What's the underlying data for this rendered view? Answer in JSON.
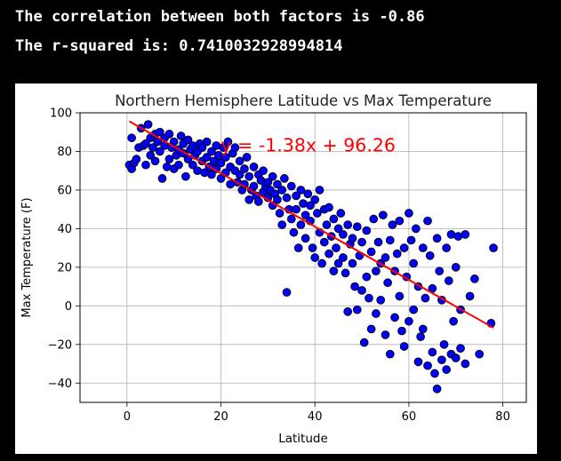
{
  "output": {
    "line1": "The correlation between both factors is -0.86",
    "line2": "The r-squared is: 0.7410032928994814"
  },
  "chart_data": {
    "type": "scatter",
    "title": "Northern Hemisphere Latitude vs Max Temperature",
    "xlabel": "Latitude",
    "ylabel": "Max Temperature (F)",
    "xlim": [
      -10,
      85
    ],
    "ylim": [
      -50,
      100
    ],
    "xticks": [
      0,
      20,
      40,
      60,
      80
    ],
    "yticks": [
      -40,
      -20,
      0,
      20,
      40,
      60,
      80,
      100
    ],
    "grid": true,
    "colors": {
      "points": "#0000ff",
      "point_edge": "#000000",
      "regression": "#ff0000",
      "annotation": "#ff0000"
    },
    "regression": {
      "slope": -1.38,
      "intercept": 96.26,
      "x_range": [
        0.5,
        78
      ]
    },
    "annotation": {
      "text": "y = -1.38x + 96.26",
      "x": 20,
      "y": 80
    },
    "points": [
      [
        0.5,
        73
      ],
      [
        1,
        71
      ],
      [
        1,
        87
      ],
      [
        1.5,
        74
      ],
      [
        2,
        76
      ],
      [
        2.5,
        82
      ],
      [
        3,
        92
      ],
      [
        3.5,
        83
      ],
      [
        4,
        84
      ],
      [
        4,
        73
      ],
      [
        4.5,
        94
      ],
      [
        5,
        87
      ],
      [
        5,
        78
      ],
      [
        5.5,
        82
      ],
      [
        6,
        89
      ],
      [
        6,
        75
      ],
      [
        6.5,
        85
      ],
      [
        7,
        90
      ],
      [
        7,
        80
      ],
      [
        7.5,
        66
      ],
      [
        8,
        87
      ],
      [
        8,
        83
      ],
      [
        8.5,
        72
      ],
      [
        9,
        89
      ],
      [
        9,
        76
      ],
      [
        9.5,
        82
      ],
      [
        10,
        71
      ],
      [
        10,
        85
      ],
      [
        10.5,
        78
      ],
      [
        11,
        81
      ],
      [
        11,
        73
      ],
      [
        11.5,
        88
      ],
      [
        12,
        79
      ],
      [
        12,
        84
      ],
      [
        12.5,
        67
      ],
      [
        13,
        86
      ],
      [
        13,
        76
      ],
      [
        13.5,
        81
      ],
      [
        14,
        73
      ],
      [
        14,
        83
      ],
      [
        14.5,
        78
      ],
      [
        15,
        80
      ],
      [
        15,
        70
      ],
      [
        15.5,
        84
      ],
      [
        16,
        75
      ],
      [
        16,
        82
      ],
      [
        16.5,
        69
      ],
      [
        17,
        77
      ],
      [
        17,
        85
      ],
      [
        17.5,
        72
      ],
      [
        18,
        80
      ],
      [
        18,
        68
      ],
      [
        18.5,
        75
      ],
      [
        19,
        83
      ],
      [
        19,
        71
      ],
      [
        19.5,
        78
      ],
      [
        20,
        66
      ],
      [
        20,
        74
      ],
      [
        20.5,
        82
      ],
      [
        21,
        69
      ],
      [
        21,
        77
      ],
      [
        21.5,
        85
      ],
      [
        22,
        72
      ],
      [
        22,
        63
      ],
      [
        22.5,
        79
      ],
      [
        23,
        70
      ],
      [
        23,
        82
      ],
      [
        23.5,
        64
      ],
      [
        24,
        75
      ],
      [
        24,
        68
      ],
      [
        24.5,
        60
      ],
      [
        25,
        71
      ],
      [
        25,
        63
      ],
      [
        25.5,
        77
      ],
      [
        26,
        55
      ],
      [
        26,
        67
      ],
      [
        26.5,
        60
      ],
      [
        27,
        72
      ],
      [
        27,
        62
      ],
      [
        27.5,
        57
      ],
      [
        28,
        68
      ],
      [
        28,
        54
      ],
      [
        28.5,
        65
      ],
      [
        29,
        59
      ],
      [
        29,
        70
      ],
      [
        29.5,
        62
      ],
      [
        30,
        56
      ],
      [
        30,
        64
      ],
      [
        30.5,
        60
      ],
      [
        31,
        67
      ],
      [
        31,
        52
      ],
      [
        31.5,
        58
      ],
      [
        32,
        63
      ],
      [
        32,
        55
      ],
      [
        32.5,
        48
      ],
      [
        33,
        60
      ],
      [
        33,
        42
      ],
      [
        33.5,
        66
      ],
      [
        34,
        56
      ],
      [
        34,
        7
      ],
      [
        34.5,
        50
      ],
      [
        35,
        62
      ],
      [
        35,
        45
      ],
      [
        35.5,
        38
      ],
      [
        36,
        57
      ],
      [
        36,
        50
      ],
      [
        36.5,
        30
      ],
      [
        37,
        60
      ],
      [
        37,
        42
      ],
      [
        37.5,
        53
      ],
      [
        38,
        47
      ],
      [
        38,
        35
      ],
      [
        38.5,
        58
      ],
      [
        39,
        44
      ],
      [
        39,
        52
      ],
      [
        39.5,
        30
      ],
      [
        40,
        55
      ],
      [
        40,
        25
      ],
      [
        40.5,
        48
      ],
      [
        41,
        38
      ],
      [
        41,
        60
      ],
      [
        41.5,
        22
      ],
      [
        42,
        50
      ],
      [
        42,
        33
      ],
      [
        42.5,
        42
      ],
      [
        43,
        27
      ],
      [
        43,
        51
      ],
      [
        43.5,
        36
      ],
      [
        44,
        18
      ],
      [
        44,
        45
      ],
      [
        44.5,
        30
      ],
      [
        45,
        40
      ],
      [
        45,
        22
      ],
      [
        45.5,
        48
      ],
      [
        46,
        25
      ],
      [
        46,
        37
      ],
      [
        46.5,
        17
      ],
      [
        47,
        42
      ],
      [
        47,
        -3
      ],
      [
        47.5,
        32
      ],
      [
        48,
        22
      ],
      [
        48,
        35
      ],
      [
        48.5,
        10
      ],
      [
        49,
        41
      ],
      [
        49,
        -2
      ],
      [
        49.5,
        26
      ],
      [
        50,
        33
      ],
      [
        50,
        8
      ],
      [
        50.5,
        -19
      ],
      [
        51,
        39
      ],
      [
        51,
        15
      ],
      [
        51.5,
        4
      ],
      [
        52,
        -12
      ],
      [
        52,
        28
      ],
      [
        52.5,
        45
      ],
      [
        53,
        18
      ],
      [
        53,
        -4
      ],
      [
        53.5,
        33
      ],
      [
        54,
        22
      ],
      [
        54,
        3
      ],
      [
        54.5,
        47
      ],
      [
        55,
        25
      ],
      [
        55,
        -15
      ],
      [
        55.5,
        12
      ],
      [
        56,
        -25
      ],
      [
        56,
        34
      ],
      [
        56.5,
        42
      ],
      [
        57,
        18
      ],
      [
        57,
        -6
      ],
      [
        57.5,
        27
      ],
      [
        58,
        5
      ],
      [
        58,
        44
      ],
      [
        58.5,
        -13
      ],
      [
        59,
        30
      ],
      [
        59,
        -21
      ],
      [
        59.5,
        15
      ],
      [
        60,
        48
      ],
      [
        60,
        -8
      ],
      [
        60.5,
        34
      ],
      [
        61,
        -2
      ],
      [
        61,
        22
      ],
      [
        61.5,
        40
      ],
      [
        62,
        -29
      ],
      [
        62,
        10
      ],
      [
        62.5,
        -16
      ],
      [
        63,
        30
      ],
      [
        63,
        -12
      ],
      [
        63.5,
        4
      ],
      [
        64,
        44
      ],
      [
        64,
        -31
      ],
      [
        64.5,
        26
      ],
      [
        65,
        -24
      ],
      [
        65,
        9
      ],
      [
        65.5,
        -35
      ],
      [
        66,
        35
      ],
      [
        66,
        -43
      ],
      [
        66.5,
        18
      ],
      [
        67,
        -28
      ],
      [
        67,
        3
      ],
      [
        67.5,
        -20
      ],
      [
        68,
        30
      ],
      [
        68,
        -33
      ],
      [
        68.5,
        13
      ],
      [
        69,
        -25
      ],
      [
        69,
        37
      ],
      [
        69.5,
        -8
      ],
      [
        70,
        20
      ],
      [
        70,
        -27
      ],
      [
        70.5,
        36
      ],
      [
        71,
        -2
      ],
      [
        71,
        -22
      ],
      [
        72,
        -30
      ],
      [
        72,
        37
      ],
      [
        73,
        5
      ],
      [
        74,
        14
      ],
      [
        75,
        -25
      ],
      [
        77.5,
        -9
      ],
      [
        78,
        30
      ]
    ]
  }
}
